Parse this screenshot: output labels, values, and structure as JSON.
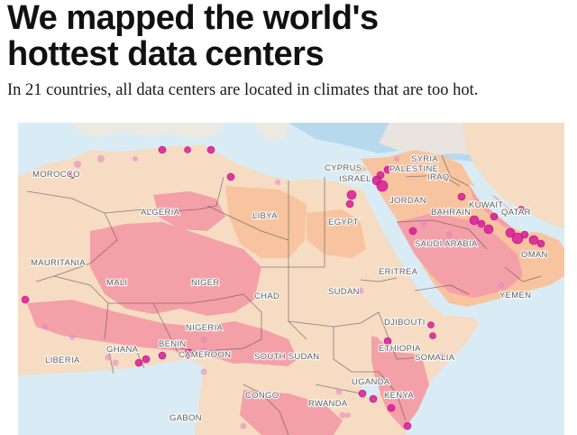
{
  "header": {
    "headline": "We mapped the world's hottest data centers",
    "subhead": "In 21 countries, all data centers are located in climates that are too hot."
  },
  "map": {
    "colors": {
      "sea": "#d9ecf5",
      "sea_cold": "#b7d9ee",
      "land_warm": "#f8c49f",
      "land_hot": "#f4a0a8",
      "land_mild": "#f6dcc2",
      "borders": "#5d5252",
      "dot": "#d81b9a"
    },
    "labels": {
      "morocco": "MOROCCO",
      "algeria": "ALGERIA",
      "libya": "LIBYA",
      "egypt": "EGYPT",
      "cyprus": "CYPRUS",
      "syria": "SYRIA",
      "palestine": "PALESTINE",
      "israel": "ISRAEL",
      "iraq": "IRAQ",
      "jordan": "JORDAN",
      "kuwait": "KUWAIT",
      "bahrain": "BAHRAIN",
      "qatar": "QATAR",
      "saudi_arabia": "SAUDI ARABIA",
      "oman": "OMAN",
      "mauritania": "MAURITANIA",
      "mali": "MALI",
      "niger": "NIGER",
      "chad": "CHAD",
      "sudan": "SUDAN",
      "eritrea": "ERITREA",
      "yemen": "YEMEN",
      "nigeria": "NIGERIA",
      "djibouti": "DJIBOUTI",
      "benin": "BENIN",
      "ghana": "GHANA",
      "cameroon": "CAMEROON",
      "south_sudan": "SOUTH SUDAN",
      "ethiopia": "ETHIOPIA",
      "somalia": "SOMALIA",
      "liberia": "LIBERIA",
      "uganda": "UGANDA",
      "kenya": "KENYA",
      "congo": "CONGO",
      "rwanda": "RWANDA",
      "gabon": "GABON"
    }
  }
}
